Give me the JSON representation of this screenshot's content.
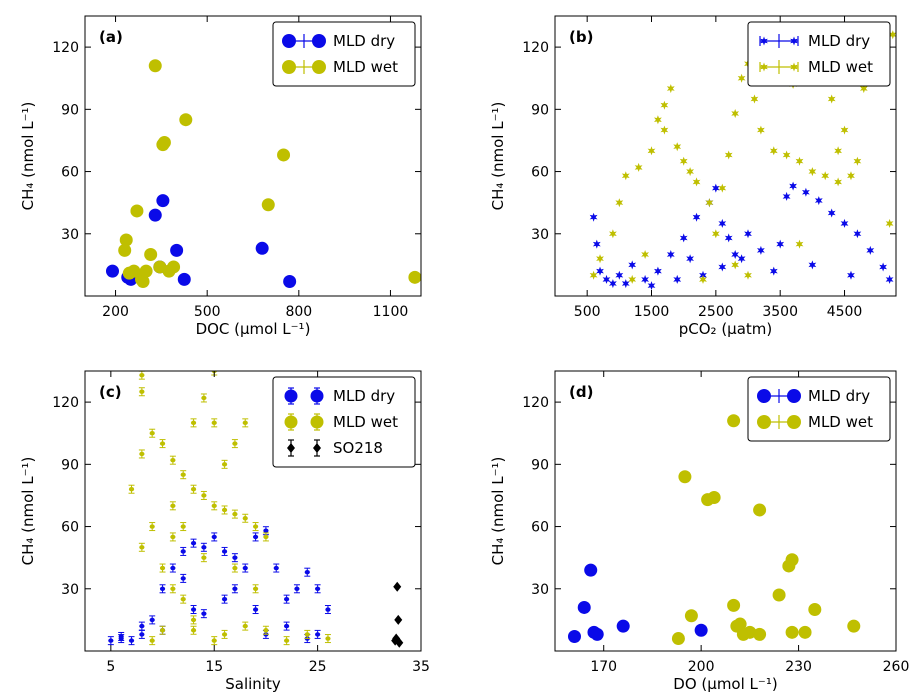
{
  "colors": {
    "dry": "#0a0ae8",
    "wet": "#bfbf00",
    "so218": "#000000"
  },
  "chart_data": [
    {
      "id": "a",
      "type": "scatter",
      "panel_label": "(a)",
      "xlabel": "DOC (μmol L⁻¹)",
      "ylabel": "CH₄ (nmol L⁻¹)",
      "xlim": [
        100,
        1200
      ],
      "ylim": [
        0,
        135
      ],
      "xticks": [
        200,
        500,
        800,
        1100
      ],
      "yticks": [
        30,
        60,
        90,
        120
      ],
      "legend": "top-right",
      "series": [
        {
          "name": "MLD dry",
          "key": "dry",
          "marker": "circle",
          "points": [
            [
              190,
              12
            ],
            [
              240,
              9
            ],
            [
              250,
              8
            ],
            [
              270,
              10
            ],
            [
              330,
              39
            ],
            [
              345,
              14
            ],
            [
              355,
              46
            ],
            [
              400,
              22
            ],
            [
              425,
              8
            ],
            [
              680,
              23
            ],
            [
              770,
              7
            ]
          ]
        },
        {
          "name": "MLD wet",
          "key": "wet",
          "marker": "circle",
          "points": [
            [
              230,
              22
            ],
            [
              235,
              27
            ],
            [
              245,
              11
            ],
            [
              260,
              12
            ],
            [
              270,
              41
            ],
            [
              285,
              8
            ],
            [
              290,
              7
            ],
            [
              300,
              12
            ],
            [
              315,
              20
            ],
            [
              330,
              111
            ],
            [
              345,
              14
            ],
            [
              355,
              73
            ],
            [
              360,
              74
            ],
            [
              375,
              12
            ],
            [
              390,
              14
            ],
            [
              430,
              85
            ],
            [
              700,
              44
            ],
            [
              750,
              68
            ],
            [
              1180,
              9
            ]
          ]
        }
      ]
    },
    {
      "id": "b",
      "type": "scatter",
      "panel_label": "(b)",
      "xlabel": "pCO₂ (μatm)",
      "ylabel": "CH₄ (nmol L⁻¹)",
      "xlim": [
        0,
        5300
      ],
      "ylim": [
        0,
        135
      ],
      "xticks": [
        500,
        1500,
        2500,
        3500,
        4500
      ],
      "yticks": [
        30,
        60,
        90,
        120
      ],
      "legend": "top-right",
      "series": [
        {
          "name": "MLD dry",
          "key": "dry",
          "marker": "star",
          "points": [
            [
              600,
              38
            ],
            [
              650,
              25
            ],
            [
              700,
              12
            ],
            [
              800,
              8
            ],
            [
              900,
              6
            ],
            [
              1000,
              10
            ],
            [
              1200,
              15
            ],
            [
              1400,
              8
            ],
            [
              1600,
              12
            ],
            [
              1800,
              20
            ],
            [
              2000,
              28
            ],
            [
              2200,
              38
            ],
            [
              2400,
              45
            ],
            [
              2500,
              52
            ],
            [
              2600,
              35
            ],
            [
              2700,
              28
            ],
            [
              2800,
              20
            ],
            [
              2900,
              18
            ],
            [
              3000,
              30
            ],
            [
              3200,
              22
            ],
            [
              3400,
              12
            ],
            [
              3600,
              48
            ],
            [
              3700,
              53
            ],
            [
              3900,
              50
            ],
            [
              4100,
              46
            ],
            [
              4300,
              40
            ],
            [
              4500,
              35
            ],
            [
              4700,
              30
            ],
            [
              4900,
              22
            ],
            [
              5100,
              14
            ],
            [
              5200,
              8
            ],
            [
              4600,
              10
            ],
            [
              4000,
              15
            ],
            [
              3500,
              25
            ],
            [
              2300,
              10
            ],
            [
              1900,
              8
            ],
            [
              1500,
              5
            ],
            [
              1100,
              6
            ],
            [
              2100,
              18
            ],
            [
              2600,
              14
            ]
          ]
        },
        {
          "name": "MLD wet",
          "key": "wet",
          "marker": "star",
          "points": [
            [
              600,
              10
            ],
            [
              700,
              18
            ],
            [
              900,
              30
            ],
            [
              1000,
              45
            ],
            [
              1100,
              58
            ],
            [
              1300,
              62
            ],
            [
              1500,
              70
            ],
            [
              1700,
              80
            ],
            [
              1900,
              72
            ],
            [
              2000,
              65
            ],
            [
              2100,
              60
            ],
            [
              2200,
              55
            ],
            [
              2400,
              45
            ],
            [
              2600,
              52
            ],
            [
              2700,
              68
            ],
            [
              2800,
              88
            ],
            [
              2900,
              105
            ],
            [
              3000,
              112
            ],
            [
              3100,
              95
            ],
            [
              3200,
              80
            ],
            [
              3400,
              70
            ],
            [
              3600,
              68
            ],
            [
              3800,
              65
            ],
            [
              4000,
              60
            ],
            [
              4200,
              58
            ],
            [
              4400,
              55
            ],
            [
              4600,
              58
            ],
            [
              4700,
              65
            ],
            [
              4500,
              80
            ],
            [
              4300,
              95
            ],
            [
              4100,
              108
            ],
            [
              3900,
              115
            ],
            [
              4000,
              122
            ],
            [
              4300,
              130
            ],
            [
              4600,
              120
            ],
            [
              4800,
              100
            ],
            [
              5250,
              126
            ],
            [
              1700,
              92
            ],
            [
              1800,
              100
            ],
            [
              1600,
              85
            ],
            [
              2800,
              15
            ],
            [
              3000,
              10
            ],
            [
              1400,
              20
            ],
            [
              1200,
              8
            ],
            [
              3800,
              25
            ],
            [
              4400,
              70
            ],
            [
              5200,
              35
            ],
            [
              3700,
              102
            ],
            [
              2500,
              30
            ],
            [
              2300,
              8
            ]
          ]
        }
      ]
    },
    {
      "id": "c",
      "type": "scatter",
      "panel_label": "(c)",
      "xlabel": "Salinity",
      "ylabel": "CH₄ (nmol L⁻¹)",
      "xlim": [
        2.5,
        35
      ],
      "ylim": [
        0,
        135
      ],
      "xticks": [
        5,
        15,
        25,
        35
      ],
      "yticks": [
        30,
        60,
        90,
        120
      ],
      "legend": "top-right",
      "series": [
        {
          "name": "MLD dry",
          "key": "dry",
          "marker": "errorpoint",
          "points": [
            [
              5,
              5
            ],
            [
              6,
              7
            ],
            [
              7,
              5
            ],
            [
              8,
              8
            ],
            [
              9,
              15
            ],
            [
              10,
              30
            ],
            [
              11,
              40
            ],
            [
              12,
              48
            ],
            [
              13,
              52
            ],
            [
              14,
              50
            ],
            [
              15,
              55
            ],
            [
              16,
              48
            ],
            [
              17,
              45
            ],
            [
              18,
              40
            ],
            [
              19,
              55
            ],
            [
              20,
              58
            ],
            [
              21,
              40
            ],
            [
              22,
              25
            ],
            [
              23,
              30
            ],
            [
              24,
              38
            ],
            [
              25,
              30
            ],
            [
              26,
              20
            ],
            [
              25,
              8
            ],
            [
              22,
              12
            ],
            [
              19,
              20
            ],
            [
              16,
              25
            ],
            [
              13,
              20
            ],
            [
              10,
              10
            ],
            [
              8,
              12
            ],
            [
              6,
              6
            ],
            [
              17,
              30
            ],
            [
              12,
              35
            ],
            [
              20,
              8
            ],
            [
              14,
              18
            ],
            [
              24,
              6
            ]
          ]
        },
        {
          "name": "MLD wet",
          "key": "wet",
          "marker": "errorpoint",
          "points": [
            [
              7,
              78
            ],
            [
              8,
              95
            ],
            [
              9,
              105
            ],
            [
              10,
              100
            ],
            [
              11,
              92
            ],
            [
              12,
              85
            ],
            [
              13,
              78
            ],
            [
              14,
              75
            ],
            [
              15,
              70
            ],
            [
              16,
              68
            ],
            [
              17,
              66
            ],
            [
              18,
              64
            ],
            [
              19,
              60
            ],
            [
              20,
              55
            ],
            [
              8,
              133
            ],
            [
              8,
              125
            ],
            [
              9,
              60
            ],
            [
              10,
              40
            ],
            [
              11,
              30
            ],
            [
              12,
              25
            ],
            [
              13,
              15
            ],
            [
              14,
              122
            ],
            [
              15,
              135
            ],
            [
              15,
              110
            ],
            [
              16,
              90
            ],
            [
              17,
              100
            ],
            [
              18,
              110
            ],
            [
              12,
              60
            ],
            [
              11,
              55
            ],
            [
              10,
              10
            ],
            [
              9,
              5
            ],
            [
              13,
              10
            ],
            [
              15,
              5
            ],
            [
              16,
              8
            ],
            [
              18,
              12
            ],
            [
              20,
              10
            ],
            [
              22,
              5
            ],
            [
              24,
              8
            ],
            [
              26,
              6
            ],
            [
              19,
              30
            ],
            [
              17,
              40
            ],
            [
              14,
              45
            ],
            [
              8,
              50
            ],
            [
              13,
              110
            ],
            [
              11,
              70
            ]
          ]
        },
        {
          "name": "SO218",
          "key": "so218",
          "marker": "diamond",
          "points": [
            [
              32.5,
              5
            ],
            [
              32.7,
              31
            ],
            [
              32.8,
              15
            ],
            [
              32.6,
              6
            ],
            [
              32.9,
              4
            ]
          ]
        }
      ]
    },
    {
      "id": "d",
      "type": "scatter",
      "panel_label": "(d)",
      "xlabel": "DO (μmol L⁻¹)",
      "ylabel": "CH₄ (nmol L⁻¹)",
      "xlim": [
        155,
        260
      ],
      "ylim": [
        0,
        135
      ],
      "xticks": [
        170,
        200,
        230,
        260
      ],
      "yticks": [
        30,
        60,
        90,
        120
      ],
      "legend": "top-right",
      "series": [
        {
          "name": "MLD dry",
          "key": "dry",
          "marker": "circle",
          "points": [
            [
              161,
              7
            ],
            [
              164,
              21
            ],
            [
              166,
              39
            ],
            [
              167,
              9
            ],
            [
              168,
              8
            ],
            [
              176,
              12
            ],
            [
              200,
              10
            ]
          ]
        },
        {
          "name": "MLD wet",
          "key": "wet",
          "marker": "circle",
          "points": [
            [
              193,
              6
            ],
            [
              195,
              84
            ],
            [
              197,
              17
            ],
            [
              202,
              73
            ],
            [
              204,
              74
            ],
            [
              210,
              22
            ],
            [
              210,
              111
            ],
            [
              211,
              12
            ],
            [
              212,
              13
            ],
            [
              213,
              8
            ],
            [
              215,
              9
            ],
            [
              218,
              8
            ],
            [
              218,
              68
            ],
            [
              224,
              27
            ],
            [
              227,
              41
            ],
            [
              228,
              44
            ],
            [
              228,
              9
            ],
            [
              232,
              9
            ],
            [
              235,
              20
            ],
            [
              247,
              12
            ]
          ]
        }
      ]
    }
  ]
}
